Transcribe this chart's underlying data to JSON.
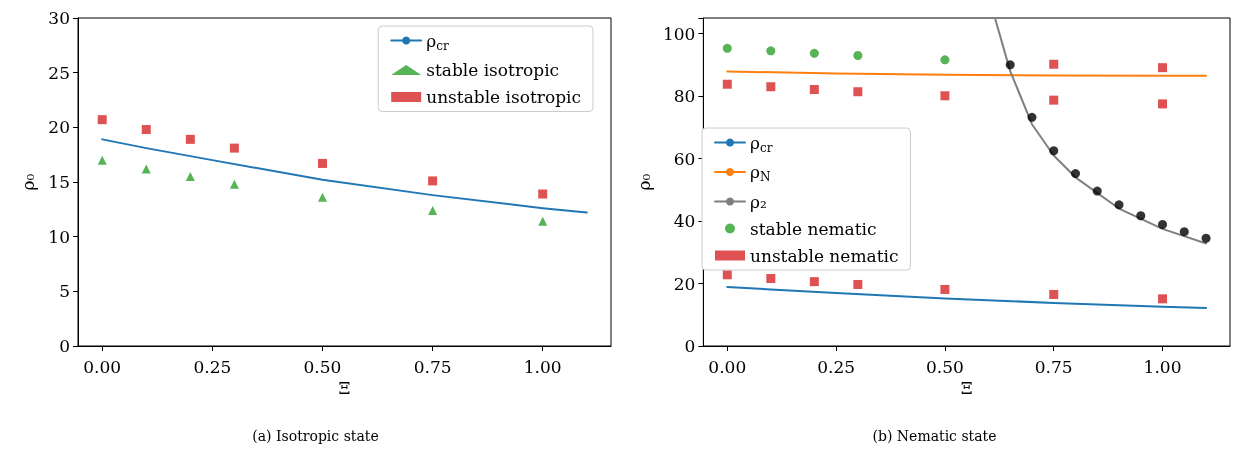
{
  "chart_data": [
    {
      "type": "scatter",
      "title": "(a) Isotropic state",
      "xlabel": "Ξ",
      "ylabel": "ρ₀",
      "xlim": [
        -0.055,
        1.155
      ],
      "ylim": [
        0,
        30
      ],
      "xticks": [
        {
          "value": 0,
          "label": "0.00"
        },
        {
          "value": 0.25,
          "label": "0.25"
        },
        {
          "value": 0.5,
          "label": "0.50"
        },
        {
          "value": 0.75,
          "label": "0.75"
        },
        {
          "value": 1,
          "label": "1.00"
        }
      ],
      "yticks": [
        0,
        5,
        10,
        15,
        20,
        25,
        30
      ],
      "grid": false,
      "legend": "top right",
      "series": [
        {
          "name": "ρ$_{cr}$",
          "type": "line",
          "marker": "none",
          "line_style": "solid",
          "color": "#1f77b4",
          "x": [
            0,
            0.1,
            0.25,
            0.5,
            0.75,
            1,
            1.1
          ],
          "values": [
            18.9,
            18.1,
            17.0,
            15.2,
            13.8,
            12.6,
            12.2
          ]
        },
        {
          "name": "stable isotropic",
          "marker": "triangle",
          "color": "#2ca02c",
          "x": [
            0,
            0.1,
            0.2,
            0.3,
            0.5,
            0.75,
            1
          ],
          "values": [
            17.0,
            16.2,
            15.5,
            14.8,
            13.6,
            12.4,
            11.4
          ]
        },
        {
          "name": "unstable isotropic",
          "marker": "square",
          "color": "#d62728",
          "x": [
            0,
            0.1,
            0.2,
            0.3,
            0.5,
            0.75,
            1
          ],
          "values": [
            20.7,
            19.8,
            18.9,
            18.1,
            16.7,
            15.1,
            13.9
          ]
        }
      ]
    },
    {
      "type": "scatter",
      "title": "(b) Nematic state",
      "xlabel": "Ξ",
      "ylabel": "ρ₀",
      "xlim": [
        -0.055,
        1.155
      ],
      "ylim": [
        0,
        105
      ],
      "xticks": [
        {
          "value": 0,
          "label": "0.00"
        },
        {
          "value": 0.25,
          "label": "0.25"
        },
        {
          "value": 0.5,
          "label": "0.50"
        },
        {
          "value": 0.75,
          "label": "0.75"
        },
        {
          "value": 1,
          "label": "1.00"
        }
      ],
      "yticks": [
        0,
        20,
        40,
        60,
        80,
        100
      ],
      "grid": false,
      "legend": "left",
      "series": [
        {
          "name": "ρ$_{cr}$",
          "type": "line",
          "marker": "none",
          "line_style": "solid",
          "color": "#1f77b4",
          "x": [
            0,
            0.1,
            0.25,
            0.5,
            0.75,
            1,
            1.1
          ],
          "values": [
            18.9,
            18.1,
            17.0,
            15.2,
            13.8,
            12.6,
            12.2
          ]
        },
        {
          "name": "ρ$_{N}$",
          "type": "line",
          "marker": "none",
          "line_style": "solid",
          "color": "#ff7f0e",
          "x": [
            0,
            0.25,
            0.5,
            0.75,
            1,
            1.1
          ],
          "values": [
            87.9,
            87.2,
            86.8,
            86.6,
            86.5,
            86.5
          ]
        },
        {
          "name": "ρ₂",
          "type": "line",
          "marker": "none",
          "line_style": "solid",
          "color": "#7f7f7f",
          "x": [
            0.615,
            0.65,
            0.7,
            0.75,
            0.8,
            0.9,
            1,
            1.1
          ],
          "values": [
            105,
            88,
            71,
            61,
            54,
            44,
            37.5,
            32.8
          ]
        },
        {
          "marker": "circle",
          "color": "#000000",
          "x": [
            0.65,
            0.7,
            0.75,
            0.8,
            0.85,
            0.9,
            0.95,
            1,
            1.05,
            1.1
          ],
          "values": [
            90,
            73.2,
            62.5,
            55.2,
            49.6,
            45.2,
            41.7,
            38.9,
            36.6,
            34.5
          ]
        },
        {
          "name": "stable nematic",
          "marker": "circle",
          "color": "#2ca02c",
          "x": [
            0,
            0.1,
            0.2,
            0.3,
            0.5
          ],
          "values": [
            95.3,
            94.5,
            93.7,
            93.0,
            91.6
          ]
        },
        {
          "name": "unstable nematic",
          "marker": "square",
          "color": "#d62728",
          "x": [
            0,
            0.1,
            0.2,
            0.3,
            0.5,
            0.75,
            1,
            0.75,
            1,
            0,
            0.1,
            0.2,
            0.3,
            0.5,
            0.75,
            1
          ],
          "values": [
            83.8,
            83.0,
            82.1,
            81.4,
            80.1,
            90.2,
            89.1,
            78.7,
            77.5,
            22.8,
            21.6,
            20.6,
            19.7,
            18.1,
            16.5,
            15.1
          ]
        }
      ]
    }
  ]
}
